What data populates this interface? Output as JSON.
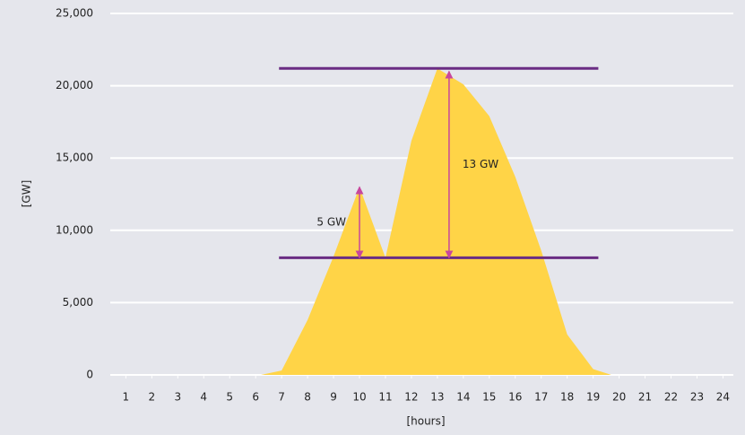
{
  "chart_data": {
    "type": "area",
    "x_label": "[hours]",
    "y_label": "[GW]",
    "x": [
      6.2,
      7,
      8,
      9,
      10,
      11,
      12,
      13,
      14,
      15,
      16,
      17,
      18,
      19,
      19.7
    ],
    "series": [
      {
        "color": "#ffd447",
        "values": [
          0,
          300,
          3800,
          8200,
          13000,
          8100,
          16200,
          21200,
          20100,
          17900,
          13700,
          8600,
          2800,
          400,
          0
        ]
      }
    ],
    "xlim": [
      0.4,
      24.4
    ],
    "xticks": [
      1,
      2,
      3,
      4,
      5,
      6,
      7,
      8,
      9,
      10,
      11,
      12,
      13,
      14,
      15,
      16,
      17,
      18,
      19,
      20,
      21,
      22,
      23,
      24
    ],
    "ylim": [
      0,
      25000
    ],
    "yticks": [
      0,
      {
        "value": 5000,
        "label": "5,000"
      },
      {
        "value": 10000,
        "label": "10,000"
      },
      {
        "value": 15000,
        "label": "15,000"
      },
      {
        "value": 20000,
        "label": "20,000"
      },
      {
        "value": 25000,
        "label": "25,000"
      }
    ],
    "grid": true,
    "reference_lines": [
      {
        "y": 21200,
        "x": [
          6.9,
          19.2
        ],
        "color": "#6a2c83"
      },
      {
        "y": 8100,
        "x": [
          6.9,
          19.2
        ],
        "color": "#6a2c83"
      }
    ],
    "annotations": [
      {
        "text": "5 GW",
        "x": 10,
        "y": [
          8100,
          13000
        ],
        "color": "#c8479c"
      },
      {
        "text": "13 GW",
        "x": 13.45,
        "y": [
          8100,
          21000
        ],
        "color": "#c8479c"
      }
    ]
  }
}
